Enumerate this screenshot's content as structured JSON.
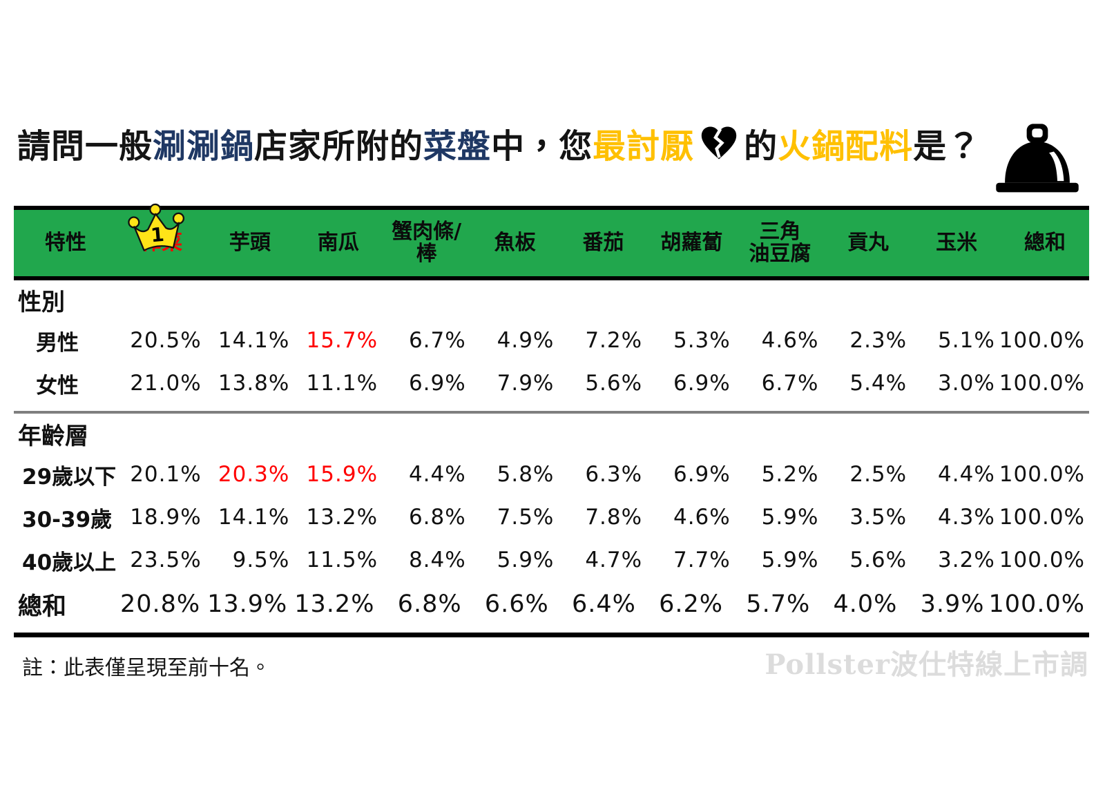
{
  "title": {
    "segments": [
      {
        "text": "請問一般",
        "color": "dark"
      },
      {
        "text": "涮涮鍋",
        "color": "blue"
      },
      {
        "text": "店家所附的",
        "color": "dark"
      },
      {
        "text": "菜盤",
        "color": "blue"
      },
      {
        "text": "中，您",
        "color": "dark"
      },
      {
        "text": "最討厭",
        "color": "yellow"
      },
      {
        "icon": "broken-heart"
      },
      {
        "text": "的",
        "color": "dark"
      },
      {
        "text": "火鍋配料",
        "color": "yellow"
      },
      {
        "text": "是？",
        "color": "dark"
      }
    ],
    "icons": [
      "broken-heart",
      "serving-cloche",
      "crown-rank-1"
    ]
  },
  "colors": {
    "accent_blue": "#1F3864",
    "accent_yellow": "#FFC000",
    "header_green": "#21A74D",
    "highlight_red": "#FF0000",
    "crown_yellow": "#FFE318",
    "watermark_gray": "#DCDCDC"
  },
  "chart_data": {
    "type": "table",
    "title": "請問一般涮涮鍋店家所附的菜盤中，您最討厭的火鍋配料是？",
    "units": "percent",
    "row_header": "特性",
    "columns": [
      {
        "label": "榨菜",
        "lines": [
          "榨菜"
        ],
        "rank_badge": "1",
        "highlight": true
      },
      {
        "label": "芋頭",
        "lines": [
          "芋頭"
        ]
      },
      {
        "label": "南瓜",
        "lines": [
          "南瓜"
        ]
      },
      {
        "label": "蟹肉條/棒",
        "lines": [
          "蟹肉條/",
          "棒"
        ]
      },
      {
        "label": "魚板",
        "lines": [
          "魚板"
        ]
      },
      {
        "label": "番茄",
        "lines": [
          "番茄"
        ]
      },
      {
        "label": "胡蘿蔔",
        "lines": [
          "胡蘿蔔"
        ]
      },
      {
        "label": "三角油豆腐",
        "lines": [
          "三角",
          "油豆腐"
        ]
      },
      {
        "label": "貢丸",
        "lines": [
          "貢丸"
        ]
      },
      {
        "label": "玉米",
        "lines": [
          "玉米"
        ]
      },
      {
        "label": "總和",
        "lines": [
          "總和"
        ]
      }
    ],
    "sections": [
      {
        "label": "性別",
        "rows": [
          {
            "label": "男性",
            "values": [
              20.5,
              14.1,
              15.7,
              6.7,
              4.9,
              7.2,
              5.3,
              4.6,
              2.3,
              5.1,
              100.0
            ],
            "highlighted": [
              2
            ]
          },
          {
            "label": "女性",
            "values": [
              21.0,
              13.8,
              11.1,
              6.9,
              7.9,
              5.6,
              6.9,
              6.7,
              5.4,
              3.0,
              100.0
            ],
            "highlighted": []
          }
        ]
      },
      {
        "label": "年齡層",
        "rows": [
          {
            "label": "29歲以下",
            "values": [
              20.1,
              20.3,
              15.9,
              4.4,
              5.8,
              6.3,
              6.9,
              5.2,
              2.5,
              4.4,
              100.0
            ],
            "highlighted": [
              1,
              2
            ]
          },
          {
            "label": "30-39歲",
            "values": [
              18.9,
              14.1,
              13.2,
              6.8,
              7.5,
              7.8,
              4.6,
              5.9,
              3.5,
              4.3,
              100.0
            ],
            "highlighted": []
          },
          {
            "label": "40歲以上",
            "values": [
              23.5,
              9.5,
              11.5,
              8.4,
              5.9,
              4.7,
              7.7,
              5.9,
              5.6,
              3.2,
              100.0
            ],
            "highlighted": []
          }
        ]
      }
    ],
    "total": {
      "label": "總和",
      "values": [
        20.8,
        13.9,
        13.2,
        6.8,
        6.6,
        6.4,
        6.2,
        5.7,
        4.0,
        3.9,
        100.0
      ],
      "highlighted": []
    },
    "top_rank": {
      "column": "榨菜",
      "badge": "1"
    }
  },
  "note": "註：此表僅呈現至前十名。",
  "watermark": "Pollster波仕特線上市調"
}
